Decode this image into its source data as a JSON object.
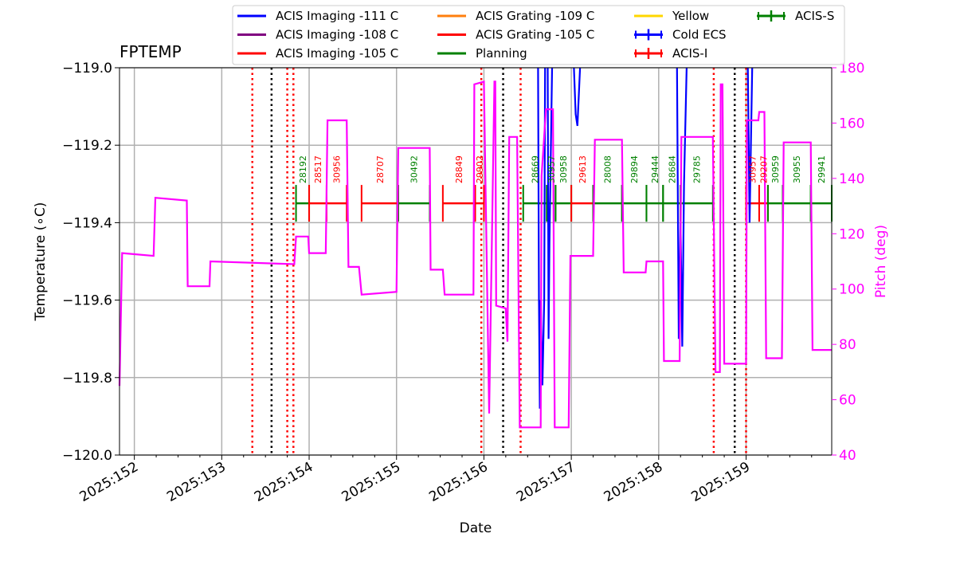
{
  "chart_data": {
    "type": "line",
    "title": "FPTEMP",
    "xlabel": "Date",
    "ylabel": "Temperature (∘C)",
    "y2label": "Pitch (deg)",
    "xlim": [
      151.83,
      159.98
    ],
    "ylim": [
      -120.0,
      -119.0
    ],
    "y2lim": [
      40,
      180
    ],
    "xticks": [
      {
        "value": 152,
        "label": "2025:152"
      },
      {
        "value": 153,
        "label": "2025:153"
      },
      {
        "value": 154,
        "label": "2025:154"
      },
      {
        "value": 155,
        "label": "2025:155"
      },
      {
        "value": 156,
        "label": "2025:156"
      },
      {
        "value": 157,
        "label": "2025:157"
      },
      {
        "value": 158,
        "label": "2025:158"
      },
      {
        "value": 159,
        "label": "2025:159"
      }
    ],
    "yticks": [
      "−120.0",
      "−119.8",
      "−119.6",
      "−119.4",
      "−119.2",
      "−119.0"
    ],
    "y2ticks": [
      "40",
      "60",
      "80",
      "100",
      "120",
      "140",
      "160",
      "180"
    ],
    "grid": true,
    "legend_position": "top",
    "colors": {
      "pitch": "#ff00ff",
      "cold_ecs": "#0000ff",
      "acis_i": "#ff0000",
      "acis_s": "#008000",
      "red_line": "#ff0000",
      "black_line": "#000000"
    },
    "legend": [
      {
        "label": "ACIS Imaging -111 C",
        "color": "#0000ff",
        "marker": "line"
      },
      {
        "label": "ACIS Imaging -108 C",
        "color": "#800080",
        "marker": "line"
      },
      {
        "label": "ACIS Imaging -105 C",
        "color": "#ff0000",
        "marker": "line"
      },
      {
        "label": "ACIS Grating -109 C",
        "color": "#ff7f0e",
        "marker": "line"
      },
      {
        "label": "ACIS Grating -105 C",
        "color": "#ff0000",
        "marker": "line"
      },
      {
        "label": "Planning",
        "color": "#008000",
        "marker": "line"
      },
      {
        "label": "Yellow",
        "color": "#ffd700",
        "marker": "line"
      },
      {
        "label": "Cold ECS",
        "color": "#0000ff",
        "marker": "plus"
      },
      {
        "label": "ACIS-I",
        "color": "#ff0000",
        "marker": "plus"
      },
      {
        "label": "ACIS-S",
        "color": "#008000",
        "marker": "plus"
      }
    ],
    "pitch_series": {
      "name": "Pitch (deg)",
      "points": [
        [
          151.83,
          65
        ],
        [
          151.86,
          113
        ],
        [
          152.22,
          112
        ],
        [
          152.24,
          133
        ],
        [
          152.6,
          132
        ],
        [
          152.61,
          101
        ],
        [
          152.86,
          101
        ],
        [
          152.87,
          110
        ],
        [
          153.83,
          109
        ],
        [
          153.85,
          119
        ],
        [
          153.99,
          119
        ],
        [
          154.0,
          113
        ],
        [
          154.19,
          113
        ],
        [
          154.21,
          161
        ],
        [
          154.43,
          161
        ],
        [
          154.45,
          108
        ],
        [
          154.57,
          108
        ],
        [
          154.6,
          98
        ],
        [
          155.0,
          99
        ],
        [
          155.02,
          151
        ],
        [
          155.38,
          151
        ],
        [
          155.39,
          107
        ],
        [
          155.53,
          107
        ],
        [
          155.55,
          98
        ],
        [
          155.88,
          98
        ],
        [
          155.89,
          174
        ],
        [
          156.0,
          175
        ],
        [
          156.06,
          55
        ],
        [
          156.12,
          175
        ],
        [
          156.13,
          175
        ],
        [
          156.14,
          94
        ],
        [
          156.25,
          93
        ],
        [
          156.27,
          81
        ],
        [
          156.29,
          155
        ],
        [
          156.38,
          155
        ],
        [
          156.41,
          50
        ],
        [
          156.65,
          50
        ],
        [
          156.66,
          141
        ],
        [
          156.71,
          165
        ],
        [
          156.79,
          165
        ],
        [
          156.81,
          50
        ],
        [
          156.97,
          50
        ],
        [
          156.99,
          112
        ],
        [
          157.25,
          112
        ],
        [
          157.27,
          154
        ],
        [
          157.58,
          154
        ],
        [
          157.6,
          106
        ],
        [
          157.85,
          106
        ],
        [
          157.86,
          110
        ],
        [
          158.05,
          110
        ],
        [
          158.06,
          74
        ],
        [
          158.24,
          74
        ],
        [
          158.26,
          155
        ],
        [
          158.62,
          155
        ],
        [
          158.65,
          70
        ],
        [
          158.7,
          70
        ],
        [
          158.71,
          174
        ],
        [
          158.73,
          174
        ],
        [
          158.75,
          73
        ],
        [
          159.0,
          73
        ],
        [
          159.01,
          161
        ],
        [
          159.14,
          161
        ],
        [
          159.15,
          164
        ],
        [
          159.21,
          164
        ],
        [
          159.23,
          75
        ],
        [
          159.41,
          75
        ],
        [
          159.43,
          153
        ],
        [
          159.74,
          153
        ],
        [
          159.76,
          78
        ],
        [
          159.98,
          78
        ]
      ]
    },
    "cold_ecs_segments": [
      [
        [
          156.62,
          -119.0
        ],
        [
          156.63,
          -119.6
        ],
        [
          156.64,
          -119.88
        ],
        [
          156.65,
          -119.6
        ],
        [
          156.67,
          -119.82
        ],
        [
          156.69,
          -119.6
        ],
        [
          156.7,
          -119.0
        ]
      ],
      [
        [
          156.73,
          -119.0
        ],
        [
          156.74,
          -119.7
        ],
        [
          156.75,
          -119.45
        ],
        [
          156.78,
          -119.0
        ]
      ],
      [
        [
          157.03,
          -119.0
        ],
        [
          157.05,
          -119.12
        ],
        [
          157.07,
          -119.15
        ],
        [
          157.1,
          -119.0
        ]
      ],
      [
        [
          158.21,
          -119.0
        ],
        [
          158.23,
          -119.7
        ],
        [
          158.25,
          -119.4
        ],
        [
          158.27,
          -119.72
        ],
        [
          158.29,
          -119.3
        ],
        [
          158.32,
          -119.0
        ]
      ],
      [
        [
          159.02,
          -119.0
        ],
        [
          159.04,
          -119.4
        ],
        [
          159.07,
          -119.0
        ]
      ]
    ],
    "red_dotted_lines": [
      153.35,
      153.75,
      153.82,
      155.97,
      156.42,
      158.63,
      159.0
    ],
    "black_dotted_lines": [
      153.57,
      156.22,
      158.87
    ],
    "bar_level": -119.35,
    "obsid_bars": [
      {
        "obsid": "28192",
        "start": 153.85,
        "end": 154.0,
        "instrument": "ACIS-S"
      },
      {
        "obsid": "28517",
        "start": 154.0,
        "end": 154.2,
        "instrument": "ACIS-I"
      },
      {
        "obsid": "30956",
        "start": 154.2,
        "end": 154.43,
        "instrument": "ACIS-I"
      },
      {
        "obsid": "28707",
        "start": 154.6,
        "end": 155.02,
        "instrument": "ACIS-I"
      },
      {
        "obsid": "30492",
        "start": 155.02,
        "end": 155.38,
        "instrument": "ACIS-S"
      },
      {
        "obsid": "28849",
        "start": 155.53,
        "end": 155.9,
        "instrument": "ACIS-I"
      },
      {
        "obsid": "29902",
        "start": 155.9,
        "end": 156.0,
        "instrument": "ACIS-I"
      },
      {
        "obsid": "28669",
        "start": 156.45,
        "end": 156.72,
        "instrument": "ACIS-S"
      },
      {
        "obsid": "30957",
        "start": 156.72,
        "end": 156.82,
        "instrument": "ACIS-S"
      },
      {
        "obsid": "30958",
        "start": 156.82,
        "end": 157.0,
        "instrument": "ACIS-S"
      },
      {
        "obsid": "29613",
        "start": 157.0,
        "end": 157.25,
        "instrument": "ACIS-I"
      },
      {
        "obsid": "28008",
        "start": 157.25,
        "end": 157.58,
        "instrument": "ACIS-S"
      },
      {
        "obsid": "29894",
        "start": 157.58,
        "end": 157.86,
        "instrument": "ACIS-S"
      },
      {
        "obsid": "29444",
        "start": 157.86,
        "end": 158.05,
        "instrument": "ACIS-S"
      },
      {
        "obsid": "28684",
        "start": 158.05,
        "end": 158.25,
        "instrument": "ACIS-S"
      },
      {
        "obsid": "29785",
        "start": 158.25,
        "end": 158.62,
        "instrument": "ACIS-S"
      },
      {
        "obsid": "30957",
        "start": 159.0,
        "end": 159.15,
        "instrument": "ACIS-I"
      },
      {
        "obsid": "29207",
        "start": 159.15,
        "end": 159.25,
        "instrument": "ACIS-I"
      },
      {
        "obsid": "30959",
        "start": 159.25,
        "end": 159.42,
        "instrument": "ACIS-S"
      },
      {
        "obsid": "30955",
        "start": 159.42,
        "end": 159.74,
        "instrument": "ACIS-S"
      },
      {
        "obsid": "29941",
        "start": 159.74,
        "end": 159.98,
        "instrument": "ACIS-S"
      }
    ]
  }
}
